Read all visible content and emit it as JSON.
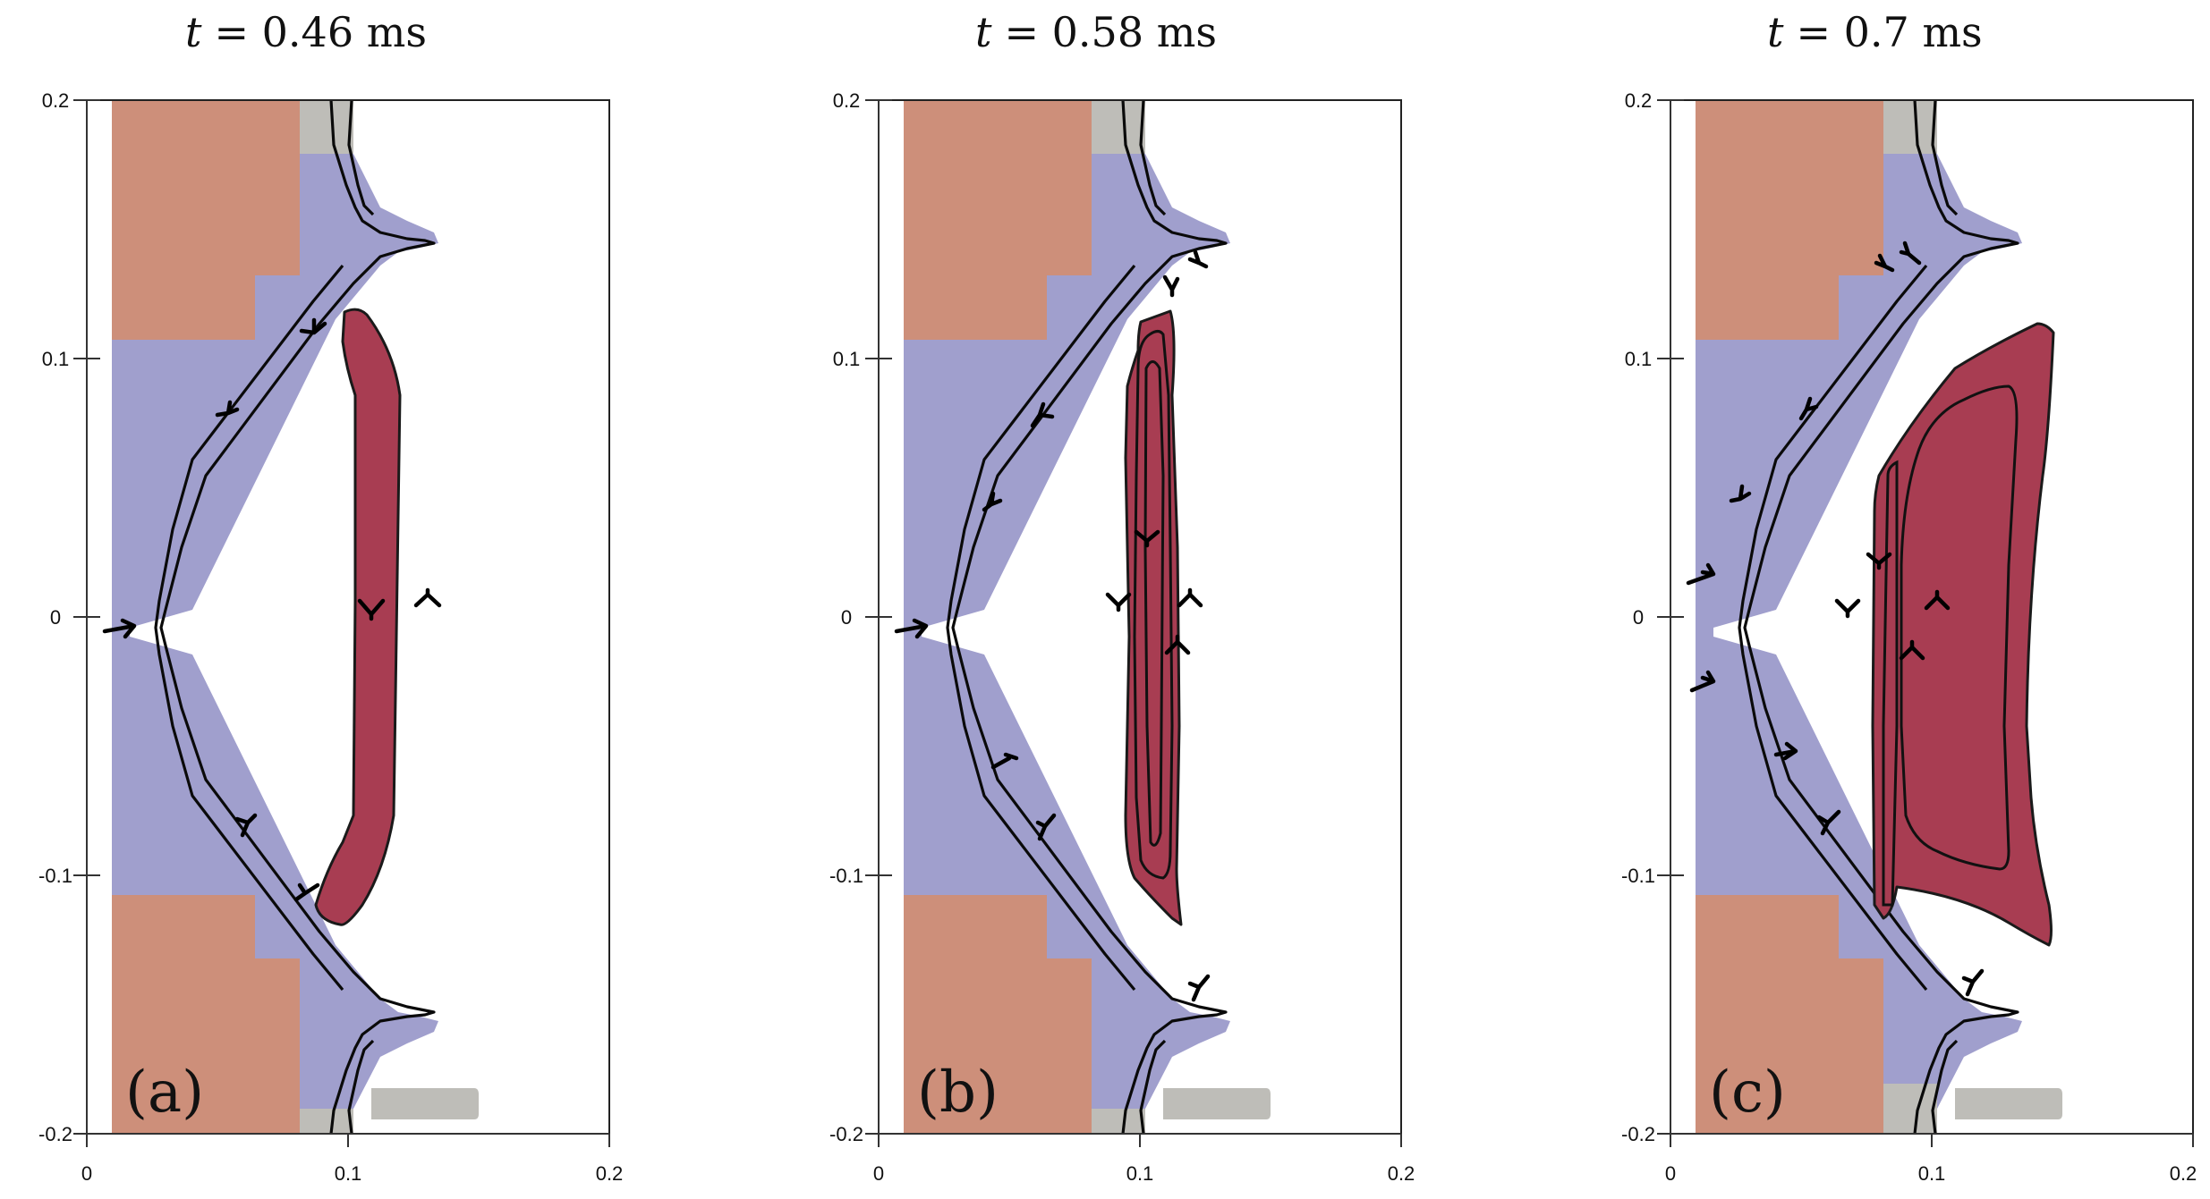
{
  "figure": {
    "panels": [
      {
        "id": "a",
        "time_prefix": "t",
        "time_value": "= 0.46 ms",
        "tag": "(a)"
      },
      {
        "id": "b",
        "time_prefix": "t",
        "time_value": "= 0.58 ms",
        "tag": "(b)"
      },
      {
        "id": "c",
        "time_prefix": "t",
        "time_value": "= 0.7 ms",
        "tag": "(c)"
      }
    ],
    "axes": {
      "x_ticks": [
        "0",
        "0.1",
        "0.2"
      ],
      "y_ticks": [
        "0.2",
        "0.1",
        "0",
        "-0.1",
        "-0.2"
      ]
    },
    "colors": {
      "coil": "#cd8f7a",
      "vessel": "#a09fcd",
      "port": "#bebdb8",
      "plasma": "#a83d52"
    }
  }
}
